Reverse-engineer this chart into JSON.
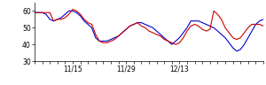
{
  "blue_y": [
    59,
    59,
    59,
    58,
    55,
    54,
    55,
    56,
    58,
    60,
    60,
    59,
    57,
    54,
    52,
    50,
    44,
    42,
    42,
    42,
    43,
    44,
    45,
    47,
    49,
    51,
    52,
    53,
    53,
    52,
    51,
    50,
    48,
    46,
    44,
    42,
    40,
    42,
    44,
    47,
    50,
    54,
    54,
    54,
    53,
    52,
    51,
    50,
    48,
    46,
    44,
    41,
    38,
    36,
    37,
    40,
    44,
    48,
    52,
    54,
    55
  ],
  "red_y": [
    59,
    59,
    59,
    59,
    59,
    54,
    55,
    55,
    56,
    58,
    61,
    60,
    58,
    55,
    53,
    52,
    46,
    42,
    41,
    41,
    42,
    43,
    45,
    47,
    49,
    51,
    52,
    53,
    51,
    50,
    48,
    47,
    46,
    45,
    43,
    42,
    41,
    40,
    41,
    44,
    48,
    51,
    52,
    51,
    49,
    48,
    49,
    60,
    58,
    55,
    50,
    47,
    44,
    43,
    44,
    47,
    50,
    52,
    52,
    52,
    51
  ],
  "x_ticks": [
    10,
    24,
    38
  ],
  "x_tick_labels": [
    "11/15",
    "11/29",
    "12/13"
  ],
  "ylim": [
    30,
    65
  ],
  "yticks": [
    30,
    40,
    50,
    60
  ],
  "blue_color": "#0000cc",
  "red_color": "#cc0000",
  "bg_color": "#ffffff",
  "linewidth": 0.8
}
